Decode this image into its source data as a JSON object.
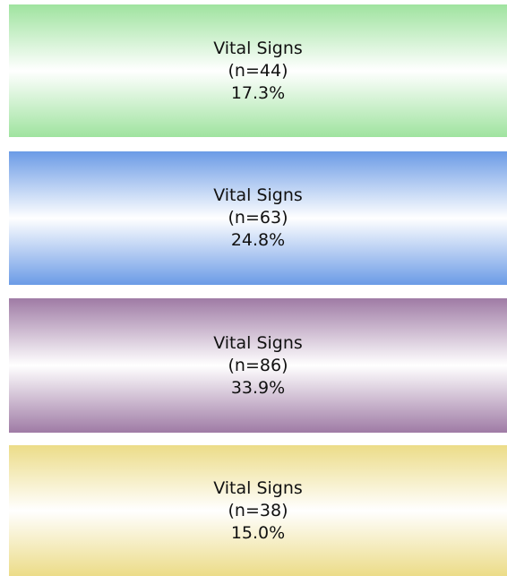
{
  "boxes": [
    {
      "label": "Vital Signs",
      "count": "(n=44)",
      "percent": "17.3%"
    },
    {
      "label": "Vital Signs",
      "count": "(n=63)",
      "percent": "24.8%"
    },
    {
      "label": "Vital Signs",
      "count": "(n=86)",
      "percent": "33.9%"
    },
    {
      "label": "Vital Signs",
      "count": "(n=38)",
      "percent": "15.0%"
    }
  ]
}
